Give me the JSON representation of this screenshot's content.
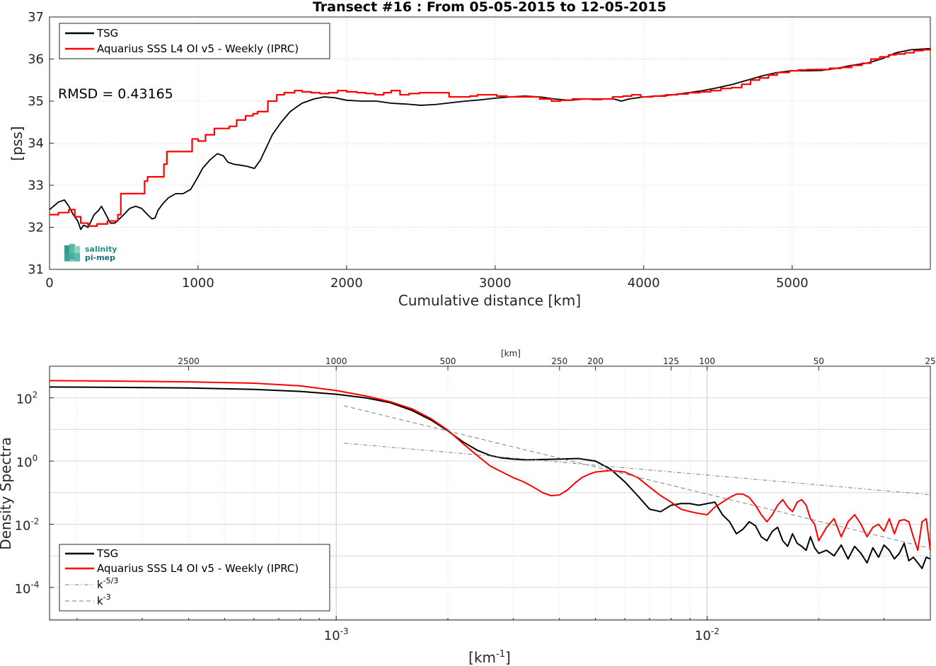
{
  "chart_data": [
    {
      "type": "line",
      "title": "Transect #16 : From 05-05-2015 to 12-05-2015",
      "xlabel": "Cumulative distance [km]",
      "ylabel": "[pss]",
      "xlim": [
        0,
        5930
      ],
      "ylim": [
        31,
        37
      ],
      "xticks": [
        "0",
        "1000",
        "2000",
        "3000",
        "4000",
        "5000"
      ],
      "yticks": [
        "31",
        "32",
        "33",
        "34",
        "35",
        "36",
        "37"
      ],
      "grid": "dotted",
      "legend_position": "top-left",
      "annotation": "RMSD = 0.43165",
      "logo": {
        "line1": "salinity",
        "line2": "pi-mep"
      },
      "series": [
        {
          "name": "TSG",
          "color": "#000000",
          "x": [
            0,
            60,
            100,
            130,
            160,
            190,
            210,
            230,
            260,
            300,
            330,
            350,
            380,
            410,
            440,
            500,
            540,
            580,
            620,
            660,
            690,
            710,
            730,
            760,
            800,
            850,
            900,
            950,
            1000,
            1030,
            1080,
            1130,
            1170,
            1200,
            1240,
            1280,
            1330,
            1380,
            1420,
            1460,
            1500,
            1560,
            1620,
            1700,
            1780,
            1850,
            1920,
            2000,
            2100,
            2200,
            2300,
            2400,
            2500,
            2600,
            2700,
            2800,
            2900,
            3000,
            3100,
            3200,
            3300,
            3400,
            3500,
            3600,
            3700,
            3800,
            3850,
            3900,
            4000,
            4100,
            4200,
            4300,
            4400,
            4500,
            4600,
            4700,
            4800,
            4900,
            5000,
            5100,
            5200,
            5300,
            5400,
            5500,
            5600,
            5700,
            5800,
            5930
          ],
          "y": [
            32.42,
            32.6,
            32.65,
            32.5,
            32.3,
            32.15,
            31.95,
            32.05,
            32.0,
            32.3,
            32.4,
            32.5,
            32.3,
            32.1,
            32.1,
            32.3,
            32.45,
            32.5,
            32.45,
            32.3,
            32.2,
            32.22,
            32.4,
            32.55,
            32.7,
            32.8,
            32.8,
            32.9,
            33.2,
            33.4,
            33.6,
            33.75,
            33.7,
            33.55,
            33.5,
            33.48,
            33.45,
            33.4,
            33.6,
            33.9,
            34.2,
            34.5,
            34.75,
            34.95,
            35.05,
            35.1,
            35.08,
            35.02,
            35.0,
            35.0,
            34.95,
            34.93,
            34.9,
            34.92,
            34.96,
            35.0,
            35.03,
            35.07,
            35.1,
            35.12,
            35.1,
            35.05,
            35.02,
            35.05,
            35.05,
            35.05,
            35.0,
            35.05,
            35.1,
            35.12,
            35.15,
            35.2,
            35.25,
            35.32,
            35.4,
            35.5,
            35.6,
            35.68,
            35.72,
            35.72,
            35.73,
            35.78,
            35.85,
            35.9,
            36.0,
            36.15,
            36.22,
            36.25
          ]
        },
        {
          "name": "Aquarius SSS L4 OI v5 - Weekly (IPRC)",
          "color": "#ff0000",
          "x": [
            0,
            60,
            130,
            170,
            210,
            260,
            320,
            390,
            460,
            480,
            640,
            660,
            770,
            790,
            960,
            1000,
            1050,
            1110,
            1210,
            1260,
            1320,
            1370,
            1400,
            1470,
            1530,
            1580,
            1650,
            1700,
            1760,
            1820,
            1880,
            1940,
            2000,
            2070,
            2130,
            2190,
            2250,
            2300,
            2360,
            2420,
            2490,
            2550,
            2620,
            2690,
            2760,
            2830,
            2880,
            2940,
            3010,
            3080,
            3150,
            3220,
            3300,
            3380,
            3440,
            3520,
            3580,
            3650,
            3720,
            3790,
            3860,
            3920,
            3980,
            4060,
            4150,
            4230,
            4300,
            4380,
            4450,
            4520,
            4590,
            4660,
            4720,
            4780,
            4840,
            4900,
            4980,
            5040,
            5100,
            5170,
            5250,
            5330,
            5400,
            5470,
            5530,
            5590,
            5650,
            5700,
            5760,
            5820,
            5880,
            5930
          ],
          "y": [
            32.3,
            32.35,
            32.42,
            32.25,
            32.1,
            32.03,
            32.08,
            32.15,
            32.3,
            32.8,
            33.1,
            33.2,
            33.5,
            33.8,
            34.1,
            34.05,
            34.2,
            34.35,
            34.4,
            34.55,
            34.65,
            34.7,
            34.75,
            35.0,
            35.15,
            35.2,
            35.25,
            35.22,
            35.2,
            35.18,
            35.2,
            35.25,
            35.22,
            35.2,
            35.18,
            35.15,
            35.2,
            35.25,
            35.15,
            35.18,
            35.2,
            35.2,
            35.2,
            35.1,
            35.1,
            35.12,
            35.15,
            35.15,
            35.12,
            35.1,
            35.1,
            35.1,
            35.05,
            35.0,
            35.02,
            35.05,
            35.05,
            35.04,
            35.05,
            35.1,
            35.12,
            35.15,
            35.1,
            35.12,
            35.15,
            35.17,
            35.2,
            35.22,
            35.25,
            35.3,
            35.32,
            35.4,
            35.5,
            35.55,
            35.62,
            35.68,
            35.72,
            35.74,
            35.75,
            35.75,
            35.78,
            35.8,
            35.85,
            35.9,
            36.0,
            36.05,
            36.1,
            36.12,
            36.15,
            36.2,
            36.22,
            36.25
          ]
        }
      ]
    },
    {
      "type": "line",
      "title": "",
      "xlabel": "[km",
      "xlabel_sup": "-1",
      "xlabel_end": "]",
      "ylabel": "Density Spectra",
      "top_axis_label": "[km]",
      "x_scale": "log",
      "y_scale": "log",
      "xlim": [
        0.00016863,
        0.04
      ],
      "ylim": [
        9.3e-06,
        1000
      ],
      "xticks": [
        {
          "value": 0.001,
          "base": "10",
          "exp": "-3"
        },
        {
          "value": 0.01,
          "base": "10",
          "exp": "-2"
        }
      ],
      "yticks": [
        {
          "value": 100,
          "base": "10",
          "exp": "2"
        },
        {
          "value": 1,
          "base": "10",
          "exp": "0"
        },
        {
          "value": 0.01,
          "base": "10",
          "exp": "-2"
        },
        {
          "value": 0.0001,
          "base": "10",
          "exp": "-4"
        }
      ],
      "top_ticks_km": [
        "2500",
        "1000",
        "500",
        "250",
        "200",
        "125",
        "100",
        "50",
        "25"
      ],
      "grid": "dotted",
      "legend_position": "bottom-left",
      "series": [
        {
          "name": "TSG",
          "color": "#000000",
          "style": "solid",
          "x": [
            0.00016863,
            0.00025,
            0.0004,
            0.0006,
            0.0008,
            0.001,
            0.0012,
            0.0014,
            0.0016,
            0.0018,
            0.002,
            0.0022,
            0.0024,
            0.0026,
            0.0028,
            0.003,
            0.0032,
            0.0034,
            0.0036,
            0.004,
            0.0045,
            0.005,
            0.0055,
            0.006,
            0.0065,
            0.007,
            0.0075,
            0.008,
            0.0085,
            0.009,
            0.0095,
            0.01,
            0.0105,
            0.011,
            0.0115,
            0.012,
            0.0125,
            0.013,
            0.0135,
            0.014,
            0.0145,
            0.015,
            0.0155,
            0.016,
            0.0165,
            0.017,
            0.0175,
            0.018,
            0.0185,
            0.019,
            0.0195,
            0.02,
            0.021,
            0.022,
            0.023,
            0.024,
            0.025,
            0.026,
            0.027,
            0.028,
            0.029,
            0.03,
            0.031,
            0.032,
            0.033,
            0.034,
            0.035,
            0.036,
            0.037,
            0.038,
            0.039,
            0.04
          ],
          "y": [
            220,
            215,
            205,
            185,
            160,
            130,
            100,
            70,
            40,
            20,
            9,
            4,
            2.2,
            1.5,
            1.25,
            1.15,
            1.1,
            1.1,
            1.12,
            1.15,
            1.2,
            1.0,
            0.55,
            0.22,
            0.08,
            0.03,
            0.025,
            0.04,
            0.045,
            0.045,
            0.04,
            0.045,
            0.05,
            0.02,
            0.012,
            0.005,
            0.007,
            0.012,
            0.009,
            0.004,
            0.003,
            0.006,
            0.008,
            0.003,
            0.002,
            0.005,
            0.0025,
            0.002,
            0.0015,
            0.004,
            0.0018,
            0.0012,
            0.0015,
            0.001,
            0.0022,
            0.0008,
            0.002,
            0.0012,
            0.0006,
            0.0018,
            0.0009,
            0.0022,
            0.0015,
            0.0008,
            0.0012,
            0.0025,
            0.0007,
            0.0009,
            0.0006,
            0.0004,
            0.0009,
            0.0008
          ]
        },
        {
          "name": "Aquarius SSS L4 OI v5 - Weekly (IPRC)",
          "color": "#ff0000",
          "style": "solid",
          "x": [
            0.00016863,
            0.00025,
            0.0004,
            0.0006,
            0.0008,
            0.001,
            0.0012,
            0.0014,
            0.0016,
            0.0018,
            0.002,
            0.0022,
            0.0024,
            0.0026,
            0.0028,
            0.003,
            0.0032,
            0.0034,
            0.0036,
            0.0038,
            0.004,
            0.0042,
            0.0044,
            0.0046,
            0.0048,
            0.005,
            0.0055,
            0.006,
            0.0065,
            0.007,
            0.0075,
            0.008,
            0.0085,
            0.009,
            0.0095,
            0.01,
            0.0105,
            0.011,
            0.0115,
            0.012,
            0.0125,
            0.013,
            0.0135,
            0.014,
            0.0145,
            0.015,
            0.0155,
            0.016,
            0.0165,
            0.017,
            0.0175,
            0.018,
            0.0185,
            0.019,
            0.0195,
            0.02,
            0.021,
            0.022,
            0.023,
            0.024,
            0.025,
            0.026,
            0.027,
            0.028,
            0.029,
            0.03,
            0.031,
            0.032,
            0.033,
            0.034,
            0.035,
            0.036,
            0.037,
            0.038,
            0.039,
            0.04
          ],
          "y": [
            350,
            340,
            320,
            290,
            240,
            170,
            115,
            75,
            45,
            22,
            9.5,
            3.5,
            1.5,
            0.7,
            0.45,
            0.3,
            0.22,
            0.15,
            0.1,
            0.08,
            0.085,
            0.12,
            0.2,
            0.3,
            0.38,
            0.45,
            0.5,
            0.45,
            0.3,
            0.15,
            0.08,
            0.05,
            0.03,
            0.025,
            0.022,
            0.02,
            0.035,
            0.05,
            0.07,
            0.09,
            0.09,
            0.07,
            0.04,
            0.02,
            0.012,
            0.02,
            0.04,
            0.06,
            0.035,
            0.025,
            0.05,
            0.06,
            0.04,
            0.015,
            0.01,
            0.003,
            0.008,
            0.015,
            0.004,
            0.012,
            0.02,
            0.01,
            0.004,
            0.008,
            0.01,
            0.006,
            0.015,
            0.005,
            0.013,
            0.014,
            0.012,
            0.004,
            0.0015,
            0.012,
            0.015,
            0.0015
          ]
        },
        {
          "name": "k",
          "name_sup": "-5/3",
          "color": "#808080",
          "style": "dashdot",
          "x": [
            0.00105,
            0.04
          ],
          "y": [
            3.7,
            0.0857
          ]
        },
        {
          "name": "k",
          "name_sup": "-3",
          "color": "#808080",
          "style": "dashed",
          "x": [
            0.00105,
            0.04
          ],
          "y": [
            56,
            0.00173
          ]
        }
      ]
    }
  ]
}
